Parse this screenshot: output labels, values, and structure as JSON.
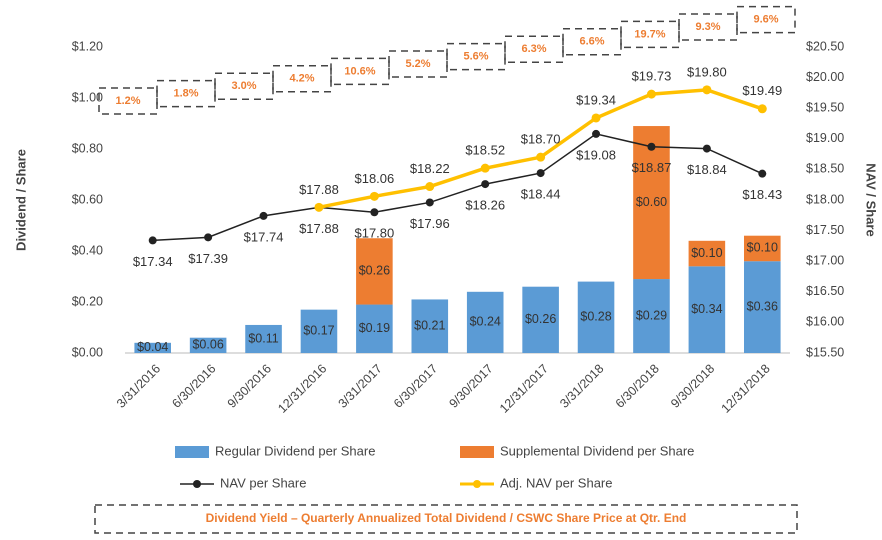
{
  "chart_data": {
    "type": "bar",
    "categories": [
      "3/31/2016",
      "6/30/2016",
      "9/30/2016",
      "12/31/2016",
      "3/31/2017",
      "6/30/2017",
      "9/30/2017",
      "12/31/2017",
      "3/31/2018",
      "6/30/2018",
      "9/30/2018",
      "12/31/2018"
    ],
    "series": [
      {
        "name": "Regular Dividend per Share",
        "color": "#5b9bd5",
        "type": "bar",
        "values": [
          0.04,
          0.06,
          0.11,
          0.17,
          0.19,
          0.21,
          0.24,
          0.26,
          0.28,
          0.29,
          0.34,
          0.36
        ],
        "value_labels": [
          "$0.04",
          "$0.06",
          "$0.11",
          "$0.17",
          "$0.19",
          "$0.21",
          "$0.24",
          "$0.26",
          "$0.28",
          "$0.29",
          "$0.34",
          "$0.36"
        ]
      },
      {
        "name": "Supplemental Dividend per Share",
        "color": "#ed7d31",
        "type": "bar",
        "stacked": true,
        "values": [
          null,
          null,
          null,
          null,
          0.26,
          null,
          null,
          null,
          null,
          0.6,
          0.1,
          0.1
        ],
        "value_labels": [
          null,
          null,
          null,
          null,
          "$0.26",
          null,
          null,
          null,
          null,
          "$0.60",
          "$0.10",
          "$0.10"
        ]
      },
      {
        "name": "NAV per Share",
        "color": "#222222",
        "type": "line",
        "axis": "y2",
        "values": [
          17.34,
          17.39,
          17.74,
          17.88,
          17.8,
          17.96,
          18.26,
          18.44,
          19.08,
          18.87,
          18.84,
          18.43
        ],
        "value_labels": [
          "$17.34",
          "$17.39",
          "$17.74",
          "$17.88",
          "$17.80",
          "$17.96",
          "$18.26",
          "$18.44",
          "$19.08",
          "$18.87",
          "$18.84",
          "$18.43"
        ]
      },
      {
        "name": "Adj. NAV per Share",
        "color": "#ffc000",
        "type": "line",
        "axis": "y2",
        "values": [
          null,
          null,
          null,
          17.88,
          18.06,
          18.22,
          18.52,
          18.7,
          19.34,
          19.73,
          19.8,
          19.49
        ],
        "value_labels": [
          null,
          null,
          null,
          "$17.88",
          "$18.06",
          "$18.22",
          "$18.52",
          "$18.70",
          "$19.34",
          "$19.73",
          "$19.80",
          "$19.49"
        ]
      }
    ],
    "ylabel": "Dividend / Share",
    "y2label": "NAV / Share",
    "ylim": [
      0,
      1.2
    ],
    "yticks": [
      {
        "value": 0,
        "label": "$0.00"
      },
      {
        "value": 0.2,
        "label": "$0.20"
      },
      {
        "value": 0.4,
        "label": "$0.40"
      },
      {
        "value": 0.6,
        "label": "$0.60"
      },
      {
        "value": 0.8,
        "label": "$0.80"
      },
      {
        "value": 1.0,
        "label": "$1.00"
      },
      {
        "value": 1.2,
        "label": "$1.20"
      }
    ],
    "y2lim": [
      15.5,
      20.5
    ],
    "y2ticks": [
      {
        "value": 15.5,
        "label": "$15.50"
      },
      {
        "value": 16,
        "label": "$16.00"
      },
      {
        "value": 16.5,
        "label": "$16.50"
      },
      {
        "value": 17,
        "label": "$17.00"
      },
      {
        "value": 17.5,
        "label": "$17.50"
      },
      {
        "value": 18,
        "label": "$18.00"
      },
      {
        "value": 18.5,
        "label": "$18.50"
      },
      {
        "value": 19,
        "label": "$19.00"
      },
      {
        "value": 19.5,
        "label": "$19.50"
      },
      {
        "value": 20,
        "label": "$20.00"
      },
      {
        "value": 20.5,
        "label": "$20.50"
      }
    ],
    "yield": {
      "values": [
        1.2,
        1.8,
        3.0,
        4.2,
        10.6,
        5.2,
        5.6,
        6.3,
        6.6,
        19.7,
        9.3,
        9.6
      ],
      "value_labels": [
        "1.2%",
        "1.8%",
        "3.0%",
        "4.2%",
        "10.6%",
        "5.2%",
        "5.6%",
        "6.3%",
        "6.6%",
        "19.7%",
        "9.3%",
        "9.6%"
      ],
      "color": "#ed7d31"
    },
    "footnote": "Dividend Yield – Quarterly Annualized Total Dividend / CSWC Share Price at Qtr. End"
  }
}
